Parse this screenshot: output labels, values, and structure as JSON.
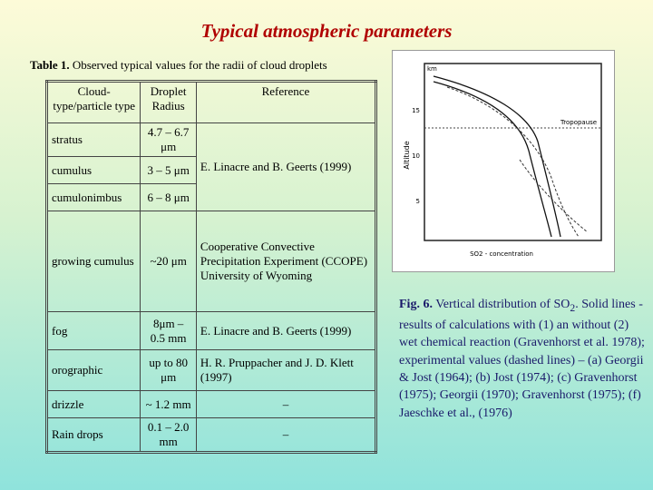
{
  "title": "Typical atmospheric parameters",
  "table_caption": {
    "label": "Table 1.",
    "text": "Observed typical values for the radii of cloud droplets"
  },
  "table": {
    "headers": [
      "Cloud-type/particle type",
      "Droplet Radius",
      "Reference"
    ],
    "groups": [
      {
        "reference": "E. Linacre and B. Geerts (1999)",
        "rows": [
          [
            "stratus",
            "4.7 – 6.7 μm"
          ],
          [
            "cumulus",
            "3 – 5 μm"
          ],
          [
            "cumulonimbus",
            "6 – 8 μm"
          ]
        ]
      },
      {
        "reference": "Cooperative Convective Precipitation Experiment (CCOPE) University of Wyoming",
        "rows": [
          [
            "growing cumulus",
            "~20 μm"
          ]
        ]
      },
      {
        "reference": "E. Linacre and B. Geerts (1999)",
        "rows": [
          [
            "fog",
            "8μm – 0.5 mm"
          ]
        ]
      },
      {
        "reference": "H. R. Pruppacher and J. D. Klett (1997)",
        "rows": [
          [
            "orographic",
            "up to 80 μm"
          ]
        ]
      },
      {
        "reference": "–",
        "rows": [
          [
            "drizzle",
            "~ 1.2 mm"
          ]
        ]
      },
      {
        "reference": "–",
        "rows": [
          [
            "Rain drops",
            "0.1 – 2.0 mm"
          ]
        ]
      }
    ]
  },
  "figure": {
    "y_unit": "km",
    "y_label": "Altitude",
    "annotation": "Tropopause",
    "y_ticks": [
      "15",
      "10",
      "5"
    ],
    "x_label": "SO2 - concentration"
  },
  "figure_caption": {
    "label": "Fig. 6.",
    "text_before": "Vertical distribution of SO",
    "subscript": "2",
    "text_after": ". Solid lines - results of calculations with (1) an without (2) wet chemical reaction (Gravenhorst et al. 1978); experimental values (dashed lines) – (a) Georgii & Jost (1964); (b) Jost (1974); (c) Gravenhorst (1975); Georgii (1970); Gravenhorst (1975); (f) Jaeschke et al., (1976)"
  }
}
